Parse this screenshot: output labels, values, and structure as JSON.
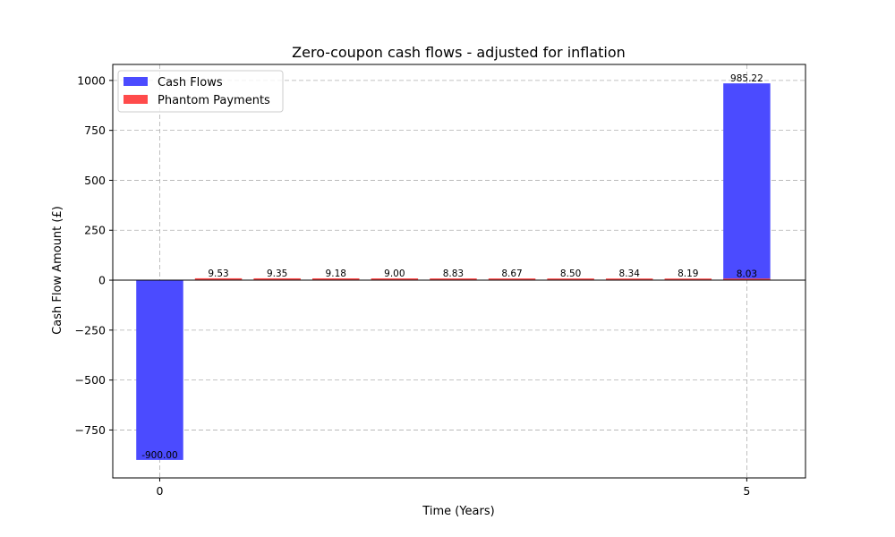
{
  "chart_data": {
    "type": "bar",
    "title": "Zero-coupon cash flows - adjusted for inflation",
    "xlabel": "Time (Years)",
    "ylabel": "Cash Flow Amount (£)",
    "xlim": [
      -0.4,
      5.5
    ],
    "ylim": [
      -990,
      1080
    ],
    "xticks": [
      0,
      5
    ],
    "xtick_labels": [
      "0",
      "5"
    ],
    "yticks": [
      -750,
      -500,
      -250,
      0,
      250,
      500,
      750,
      1000
    ],
    "ytick_labels": [
      "−750",
      "−500",
      "−250",
      "0",
      "250",
      "500",
      "750",
      "1000"
    ],
    "grid": true,
    "legend_placement": "top-left",
    "bar_width": 0.4,
    "series": [
      {
        "name": "Cash Flows",
        "color": "#4b4bff",
        "x": [
          0,
          5
        ],
        "values": [
          -900.0,
          985.22
        ],
        "labels": [
          "-900.00",
          "985.22"
        ]
      },
      {
        "name": "Phantom Payments",
        "color": "#ff4b4b",
        "x": [
          0.5,
          1.0,
          1.5,
          2.0,
          2.5,
          3.0,
          3.5,
          4.0,
          4.5,
          5.0
        ],
        "values": [
          9.53,
          9.35,
          9.18,
          9.0,
          8.83,
          8.67,
          8.5,
          8.34,
          8.19,
          8.03
        ],
        "labels": [
          "9.53",
          "9.35",
          "9.18",
          "9.00",
          "8.83",
          "8.67",
          "8.50",
          "8.34",
          "8.19",
          "8.03"
        ]
      }
    ]
  }
}
